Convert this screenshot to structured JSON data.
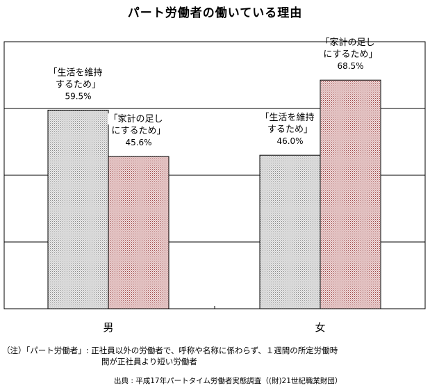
{
  "chart_data": {
    "type": "bar",
    "title": "パート労働者の働いている理由",
    "categories": [
      "男",
      "女"
    ],
    "series": [
      {
        "name": "生活を維持するため",
        "values": [
          59.5,
          46.0
        ],
        "color": "#d0d0d0",
        "pattern": "light-gray-dotted"
      },
      {
        "name": "家計の足しにするため",
        "values": [
          45.6,
          68.5
        ],
        "color": "#d9b3b3",
        "pattern": "red-dotted"
      }
    ],
    "bar_labels": [
      {
        "line1": "「生活を維持",
        "line2": "するため」",
        "value": "59.5%"
      },
      {
        "line1": "「家計の足し",
        "line2": "にするため」",
        "value": "45.6%"
      },
      {
        "line1": "「生活を維持",
        "line2": "するため」",
        "value": "46.0%"
      },
      {
        "line1": "「家計の足し",
        "line2": "にするため」",
        "value": "68.5%"
      }
    ],
    "ylim": [
      0,
      80
    ],
    "grid": true,
    "gridlines_every": 20,
    "tick_labels_shown": false
  },
  "notes": {
    "line1": "（注）「パート労働者」: 正社員以外の労働者で、呼称や名称に係わらず、１週間の所定労働時",
    "line2": "間が正社員より短い労働者"
  },
  "source": "出典 : 平成17年パートタイム労働者実態調査（(財)21世紀職業財団）"
}
